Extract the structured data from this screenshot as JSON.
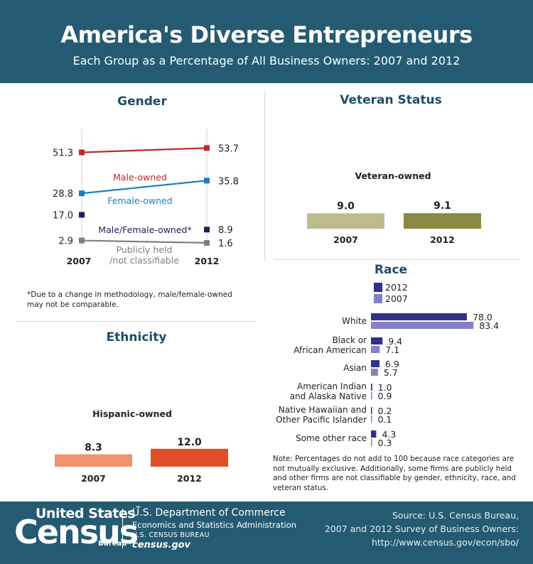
{
  "header": {
    "title": "America's Diverse Entrepreneurs",
    "subtitle": "Each Group as a Percentage of All Business Owners: 2007 and 2012"
  },
  "colors": {
    "header_bg": "#245b72",
    "male": "#c0282d",
    "female": "#1a7fc1",
    "malefemale": "#1f1f5c",
    "public": "#7f7f7f",
    "veteran_2007": "#bcbb8c",
    "veteran_2012": "#8a8a45",
    "hispanic_2007": "#f0946e",
    "hispanic_2012": "#e04e27",
    "race_2012": "#2e3288",
    "race_2007": "#8680c4"
  },
  "gender": {
    "panel_title": "Gender",
    "footnote": "*Due to a change in methodology, male/female-owned may not be comparable."
  },
  "veteran": {
    "panel_title": "Veteran Status"
  },
  "ethnicity": {
    "panel_title": "Ethnicity"
  },
  "race": {
    "panel_title": "Race",
    "note": "Note: Percentages do not add to 100 because race categories are not mutually exclusive. Additionally, some firms are publicly held and other firms are not classifiable by gender, ethnicity, race, and veteran status."
  },
  "footer": {
    "logo_top": "United States",
    "logo_tm": "™",
    "logo_main": "Census",
    "logo_bottom": "Bureau",
    "dept": "U.S. Department of Commerce",
    "dept_sub": "Economics and Statistics Administration",
    "bureau": "U.S. CENSUS BUREAU",
    "site": "census.gov",
    "source_line1": "Source: U.S. Census Bureau,",
    "source_line2": "2007 and 2012 Survey of Business Owners:",
    "source_line3": "http://www.census.gov/econ/sbo/"
  },
  "chart_data": [
    {
      "type": "line",
      "title": "Gender",
      "x": [
        "2007",
        "2012"
      ],
      "series": [
        {
          "name": "Male-owned",
          "values": [
            51.3,
            53.7
          ],
          "labels": [
            "51.3",
            "53.7"
          ]
        },
        {
          "name": "Female-owned",
          "values": [
            28.8,
            35.8
          ],
          "labels": [
            "28.8",
            "35.8"
          ]
        },
        {
          "name": "Male/Female-owned*",
          "values": [
            17.0,
            8.9
          ],
          "labels": [
            "17.0",
            "8.9"
          ]
        },
        {
          "name": "Publicly held /not classifiable",
          "values": [
            2.9,
            1.6
          ],
          "labels": [
            "2.9",
            "1.6"
          ]
        }
      ]
    },
    {
      "type": "bar",
      "title": "Veteran Status",
      "category": "Veteran-owned",
      "categories": [
        "2007",
        "2012"
      ],
      "values": [
        9.0,
        9.1
      ],
      "labels": [
        "9.0",
        "9.1"
      ]
    },
    {
      "type": "bar",
      "title": "Ethnicity",
      "category": "Hispanic-owned",
      "categories": [
        "2007",
        "2012"
      ],
      "values": [
        8.3,
        12.0
      ],
      "labels": [
        "8.3",
        "12.0"
      ]
    },
    {
      "type": "bar",
      "title": "Race",
      "legend": [
        "2012",
        "2007"
      ],
      "categories": [
        [
          "White"
        ],
        [
          "Black or",
          "African American"
        ],
        [
          "Asian"
        ],
        [
          "American Indian",
          "and Alaska Native"
        ],
        [
          "Native Hawaiian and",
          "Other Pacific Islander"
        ],
        [
          "Some other race"
        ]
      ],
      "series": [
        {
          "name": "2012",
          "values": [
            78.0,
            9.4,
            6.9,
            1.0,
            0.2,
            4.3
          ],
          "labels": [
            "78.0",
            "9.4",
            "6.9",
            "1.0",
            "0.2",
            "4.3"
          ]
        },
        {
          "name": "2007",
          "values": [
            83.4,
            7.1,
            5.7,
            0.9,
            0.1,
            0.3
          ],
          "labels": [
            "83.4",
            "7.1",
            "5.7",
            "0.9",
            "0.1",
            "0.3"
          ]
        }
      ]
    }
  ]
}
